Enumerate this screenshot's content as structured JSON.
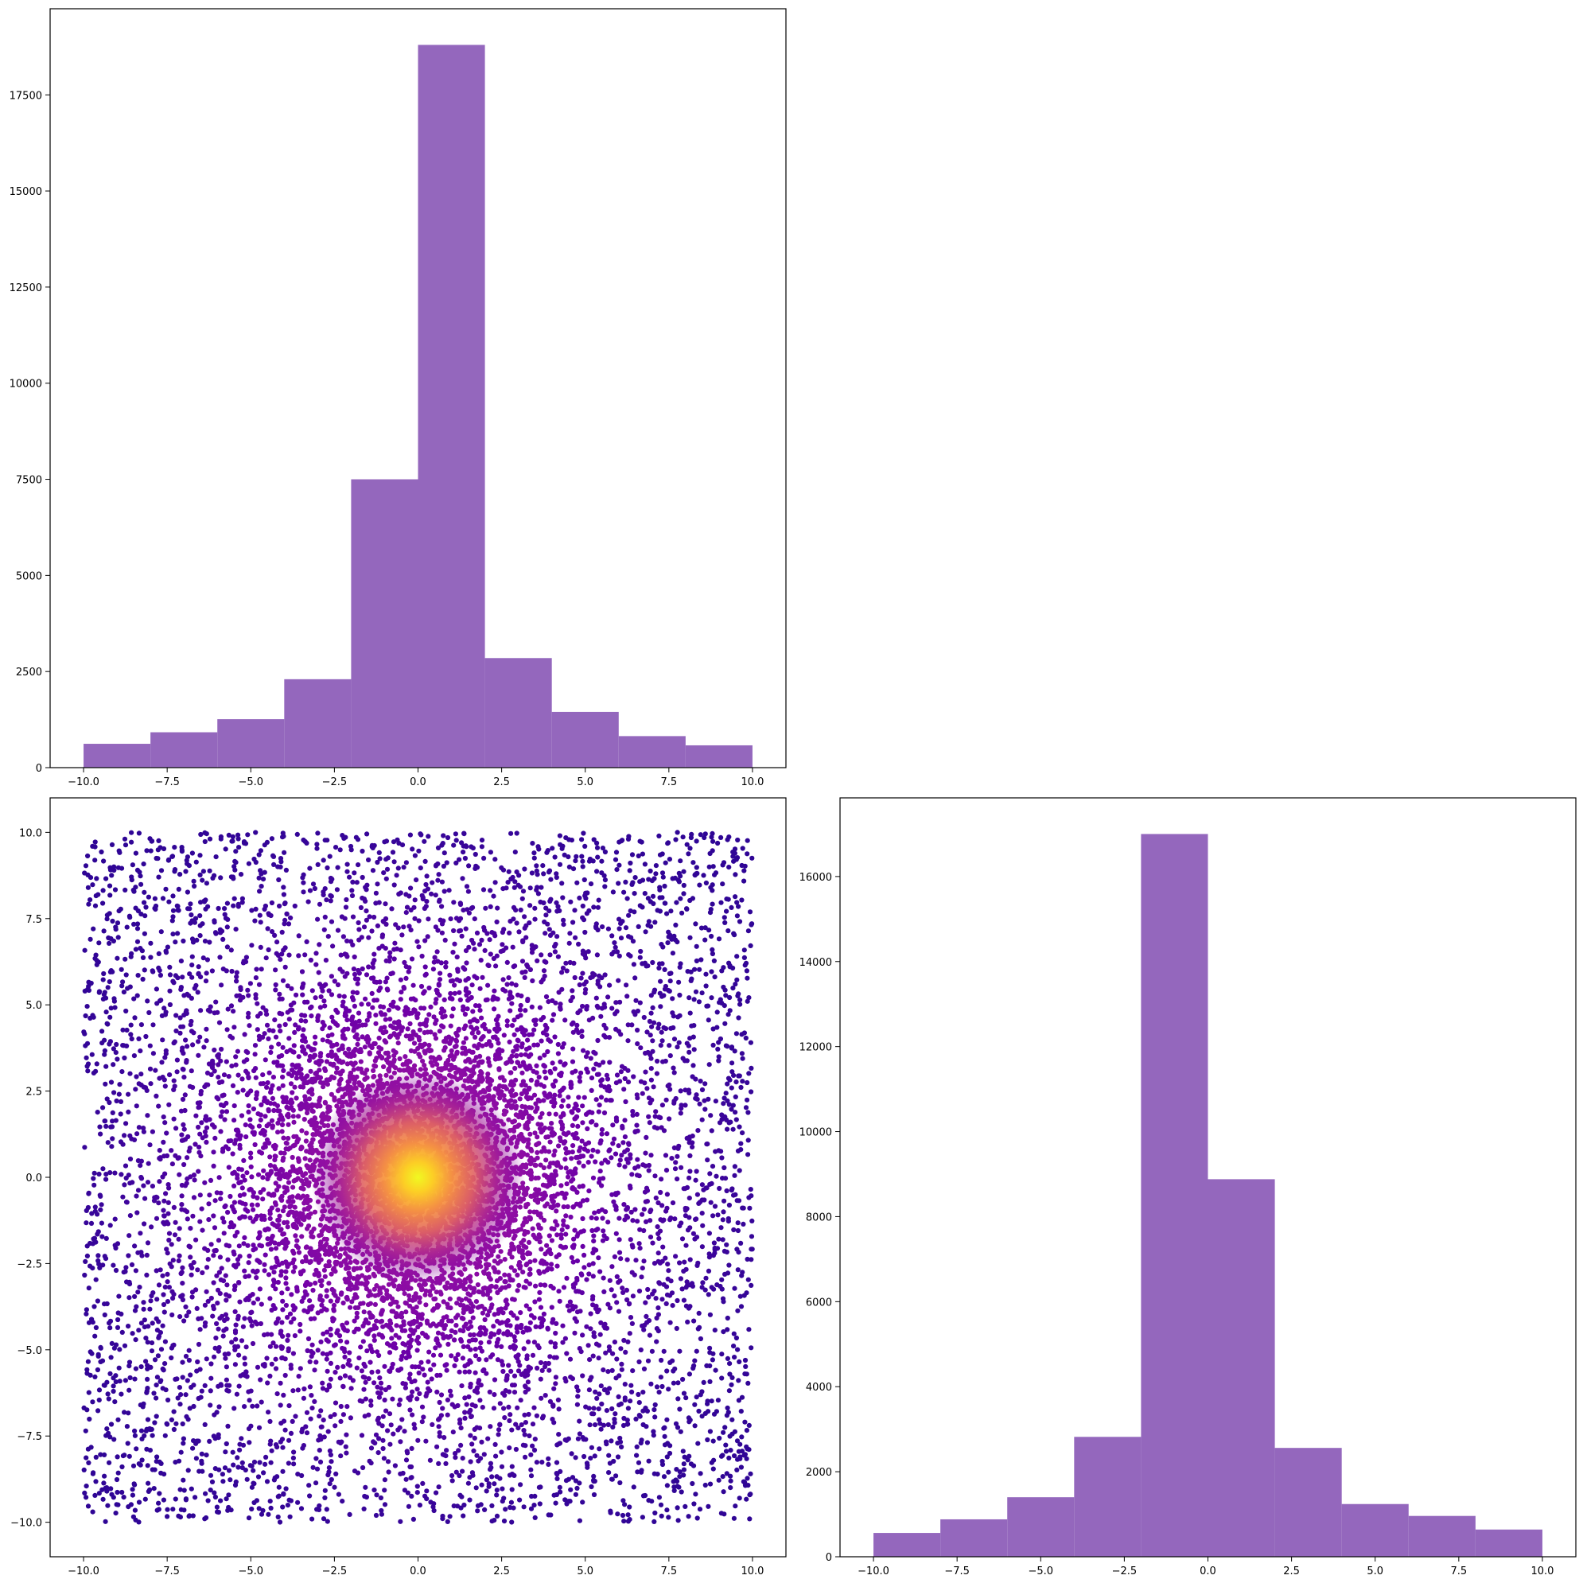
{
  "colors": {
    "bar": "#9467bd",
    "axis": "#000000",
    "background": "#ffffff",
    "scatter_colormap": "plasma"
  },
  "chart_data": [
    {
      "type": "bar",
      "panel": "top-left histogram of x",
      "title": "",
      "xlabel": "",
      "ylabel": "",
      "bin_edges": [
        -10,
        -8,
        -6,
        -4,
        -2,
        0,
        2,
        4,
        6,
        8,
        10
      ],
      "values": [
        620,
        920,
        1260,
        2300,
        7500,
        18800,
        2850,
        1450,
        820,
        580
      ],
      "xlim": [
        -11,
        11
      ],
      "ylim": [
        0,
        19740
      ],
      "xticks": [
        -10,
        -7.5,
        -5,
        -2.5,
        0,
        2.5,
        5,
        7.5,
        10
      ],
      "xtick_labels": [
        "−10.0",
        "−7.5",
        "−5.0",
        "−2.5",
        "0.0",
        "2.5",
        "5.0",
        "7.5",
        "10.0"
      ],
      "yticks": [
        0,
        2500,
        5000,
        7500,
        10000,
        12500,
        15000,
        17500
      ],
      "ytick_labels": [
        "0",
        "2500",
        "5000",
        "7500",
        "10000",
        "12500",
        "15000",
        "17500"
      ],
      "grid": false
    },
    {
      "type": "scatter",
      "panel": "bottom-left scatter of x vs y",
      "title": "",
      "xlabel": "",
      "ylabel": "",
      "distribution": "uniform background over [-10,10] x [-10,10] plus dense radial core centered at (0,0)",
      "color_by": "point density (plasma colormap: dark blue-purple at edges, yellow at center)",
      "center": [
        0,
        0
      ],
      "xlim": [
        -11,
        11
      ],
      "ylim": [
        -11,
        11
      ],
      "xticks": [
        -10,
        -7.5,
        -5,
        -2.5,
        0,
        2.5,
        5,
        7.5,
        10
      ],
      "xtick_labels": [
        "−10.0",
        "−7.5",
        "−5.0",
        "−2.5",
        "0.0",
        "2.5",
        "5.0",
        "7.5",
        "10.0"
      ],
      "yticks": [
        -10,
        -7.5,
        -5,
        -2.5,
        0,
        2.5,
        5,
        7.5,
        10
      ],
      "ytick_labels": [
        "−10.0",
        "−7.5",
        "−5.0",
        "−2.5",
        "0.0",
        "2.5",
        "5.0",
        "7.5",
        "10.0"
      ],
      "grid": false
    },
    {
      "type": "bar",
      "panel": "bottom-right histogram of y",
      "title": "",
      "xlabel": "",
      "ylabel": "",
      "bin_edges": [
        -10,
        -8,
        -6,
        -4,
        -2,
        0,
        2,
        4,
        6,
        8,
        10
      ],
      "values": [
        560,
        880,
        1400,
        2820,
        17000,
        8880,
        2560,
        1240,
        960,
        640
      ],
      "xlim": [
        -11,
        11
      ],
      "ylim": [
        0,
        17850
      ],
      "xticks": [
        -10,
        -7.5,
        -5,
        -2.5,
        0,
        2.5,
        5,
        7.5,
        10
      ],
      "xtick_labels": [
        "−10.0",
        "−7.5",
        "−5.0",
        "−2.5",
        "0.0",
        "2.5",
        "5.0",
        "7.5",
        "10.0"
      ],
      "yticks": [
        0,
        2000,
        4000,
        6000,
        8000,
        10000,
        12000,
        14000,
        16000
      ],
      "ytick_labels": [
        "0",
        "2000",
        "4000",
        "6000",
        "8000",
        "10000",
        "12000",
        "14000",
        "16000"
      ],
      "grid": false
    }
  ]
}
